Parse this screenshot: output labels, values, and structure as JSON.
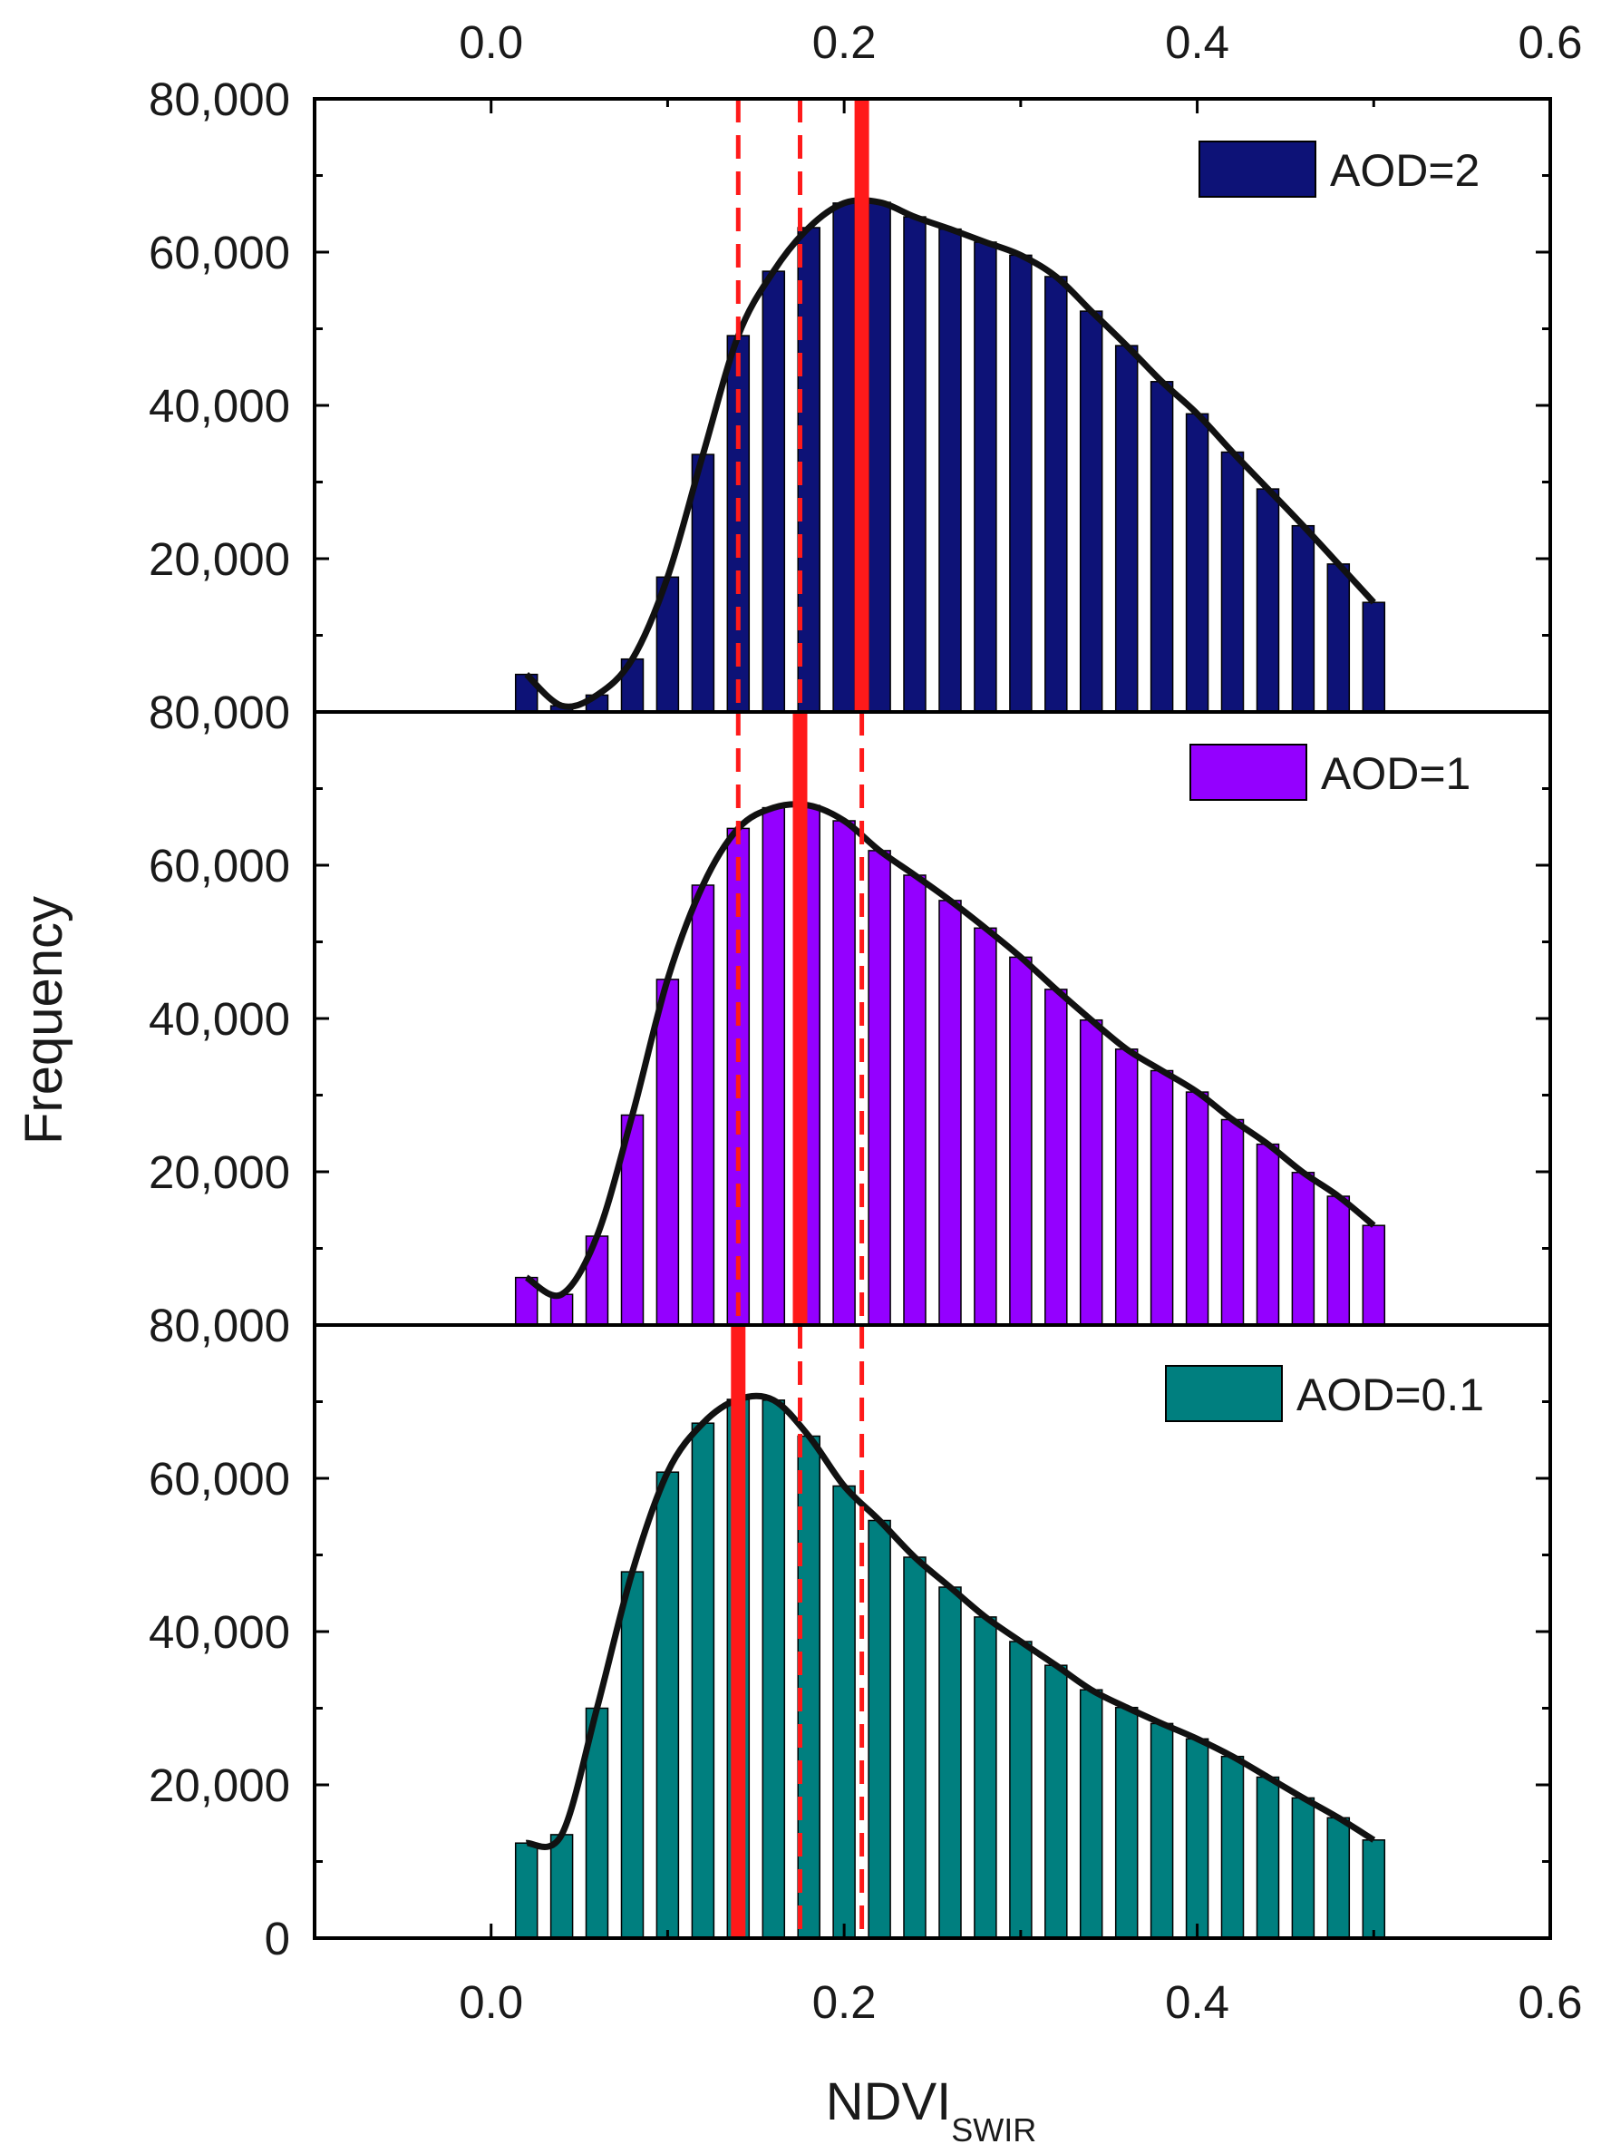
{
  "colors": {
    "aod2": "#0d1277",
    "aod1": "#9400ff",
    "aod01": "#007f7f",
    "curve": "#111111",
    "marker": "#ff1a1a",
    "axis": "#000000"
  },
  "axes": {
    "xlabel_main": "NDVI",
    "xlabel_sub": "SWIR",
    "ylabel": "Frequency",
    "xlim": [
      -0.1,
      0.6
    ],
    "ylim": [
      0,
      80000
    ],
    "x_ticks": [
      0.0,
      0.2,
      0.4,
      0.6
    ],
    "x_tick_labels": [
      "0.0",
      "0.2",
      "0.4",
      "0.6"
    ],
    "y_tick_labels_upper": [
      "80,000",
      "60,000",
      "40,000",
      "20,000"
    ],
    "y_tick_labels_bottom": [
      "80,000",
      "60,000",
      "40,000",
      "20,000",
      "0"
    ]
  },
  "chart_data": {
    "type": "bar",
    "title": "",
    "xlabel": "NDVI_SWIR",
    "ylabel": "Frequency",
    "xlim": [
      -0.1,
      0.6
    ],
    "ylim": [
      0,
      80000
    ],
    "x": [
      0.02,
      0.04,
      0.06,
      0.08,
      0.1,
      0.12,
      0.14,
      0.16,
      0.18,
      0.2,
      0.22,
      0.24,
      0.26,
      0.28,
      0.3,
      0.32,
      0.34,
      0.36,
      0.38,
      0.4,
      0.42,
      0.44,
      0.46,
      0.48,
      0.5
    ],
    "series": [
      {
        "name": "AOD=2",
        "legend": "AOD=2",
        "color": "#0d1277",
        "values": [
          4900,
          800,
          2200,
          6900,
          17600,
          33600,
          49100,
          57500,
          63200,
          66400,
          66500,
          64600,
          63000,
          61300,
          59600,
          56800,
          52300,
          47800,
          43100,
          38900,
          33900,
          29100,
          24300,
          19300,
          14300
        ],
        "mode_marker": 0.21
      },
      {
        "name": "AOD=1",
        "legend": "AOD=1",
        "color": "#9400ff",
        "values": [
          6200,
          4000,
          11600,
          27400,
          45100,
          57400,
          64800,
          67500,
          67800,
          65800,
          61900,
          58700,
          55400,
          51800,
          48000,
          43800,
          39800,
          36000,
          33200,
          30400,
          26800,
          23600,
          19900,
          16800,
          13000
        ],
        "mode_marker": 0.175
      },
      {
        "name": "AOD=0.1",
        "legend": "AOD=0.1",
        "color": "#007f7f",
        "values": [
          12400,
          13500,
          30000,
          47800,
          60800,
          67200,
          70300,
          70200,
          65500,
          59000,
          54500,
          49700,
          45800,
          41900,
          38700,
          35600,
          32400,
          30100,
          28000,
          26000,
          23700,
          21000,
          18300,
          15700,
          12800
        ],
        "mode_marker": 0.14
      }
    ],
    "reference_lines": [
      0.14,
      0.175,
      0.21
    ]
  }
}
